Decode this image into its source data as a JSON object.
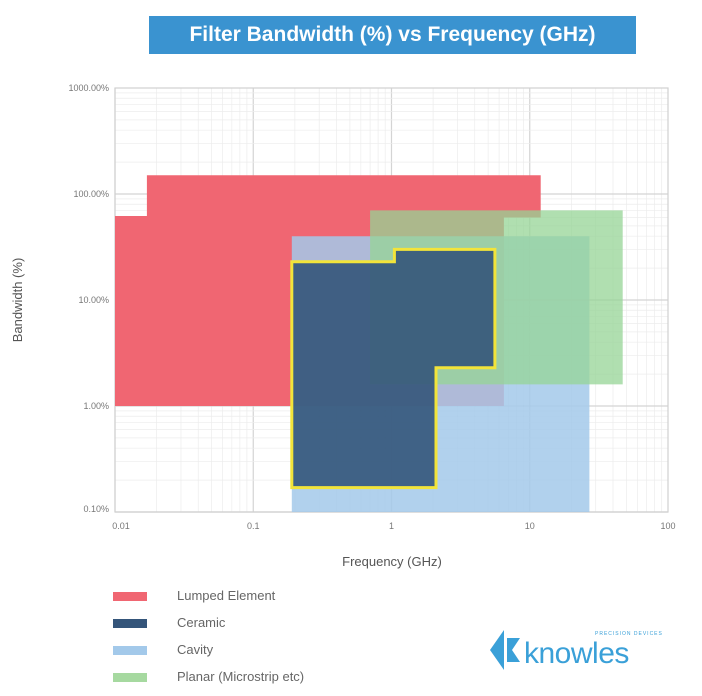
{
  "chart_data": {
    "type": "area",
    "title": "Filter Bandwidth (%) vs Frequency (GHz)",
    "xlabel": "Frequency (GHz)",
    "ylabel": "Bandwidth (%)",
    "xscale": "log",
    "yscale": "log",
    "xlim": [
      0.01,
      100
    ],
    "ylim": [
      0.1,
      1000
    ],
    "x_ticks": [
      "0.01",
      "0.1",
      "1",
      "10",
      "100"
    ],
    "y_ticks": [
      "0.10%",
      "1.00%",
      "10.00%",
      "100.00%",
      "1000.00%"
    ],
    "grid": true,
    "legend_position": "bottom-left",
    "series": [
      {
        "name": "Lumped Element",
        "color": "#f06672",
        "polygon": [
          [
            0.01,
            62
          ],
          [
            0.017,
            62
          ],
          [
            0.017,
            150
          ],
          [
            12,
            150
          ],
          [
            12,
            60
          ],
          [
            6.5,
            60
          ],
          [
            6.5,
            1
          ],
          [
            0.01,
            1
          ]
        ]
      },
      {
        "name": "Cavity",
        "color": "#a3c9ea",
        "polygon": [
          [
            0.19,
            0.1
          ],
          [
            0.19,
            40
          ],
          [
            27,
            40
          ],
          [
            27,
            0.1
          ]
        ]
      },
      {
        "name": "Planar (Microstrip etc)",
        "color": "#96d496",
        "polygon": [
          [
            0.7,
            1.6
          ],
          [
            0.7,
            70
          ],
          [
            47,
            70
          ],
          [
            47,
            1.6
          ]
        ]
      },
      {
        "name": "Ceramic",
        "color": "#34557a",
        "outline": "#f2e43a",
        "polygon": [
          [
            0.19,
            0.17
          ],
          [
            0.19,
            23
          ],
          [
            1.05,
            23
          ],
          [
            1.05,
            30
          ],
          [
            5.6,
            30
          ],
          [
            5.6,
            2.3
          ],
          [
            2.1,
            2.3
          ],
          [
            2.1,
            0.17
          ]
        ]
      }
    ]
  },
  "legend": [
    {
      "label": "Lumped Element",
      "color": "#f06672"
    },
    {
      "label": "Ceramic",
      "color": "#34557a"
    },
    {
      "label": "Cavity",
      "color": "#a3c9ea"
    },
    {
      "label": "Planar (Microstrip etc)",
      "color": "#a6d9a0"
    }
  ],
  "logo": {
    "text": "knowles",
    "subtext": "PRECISION DEVICES",
    "color": "#3aa0d8"
  }
}
